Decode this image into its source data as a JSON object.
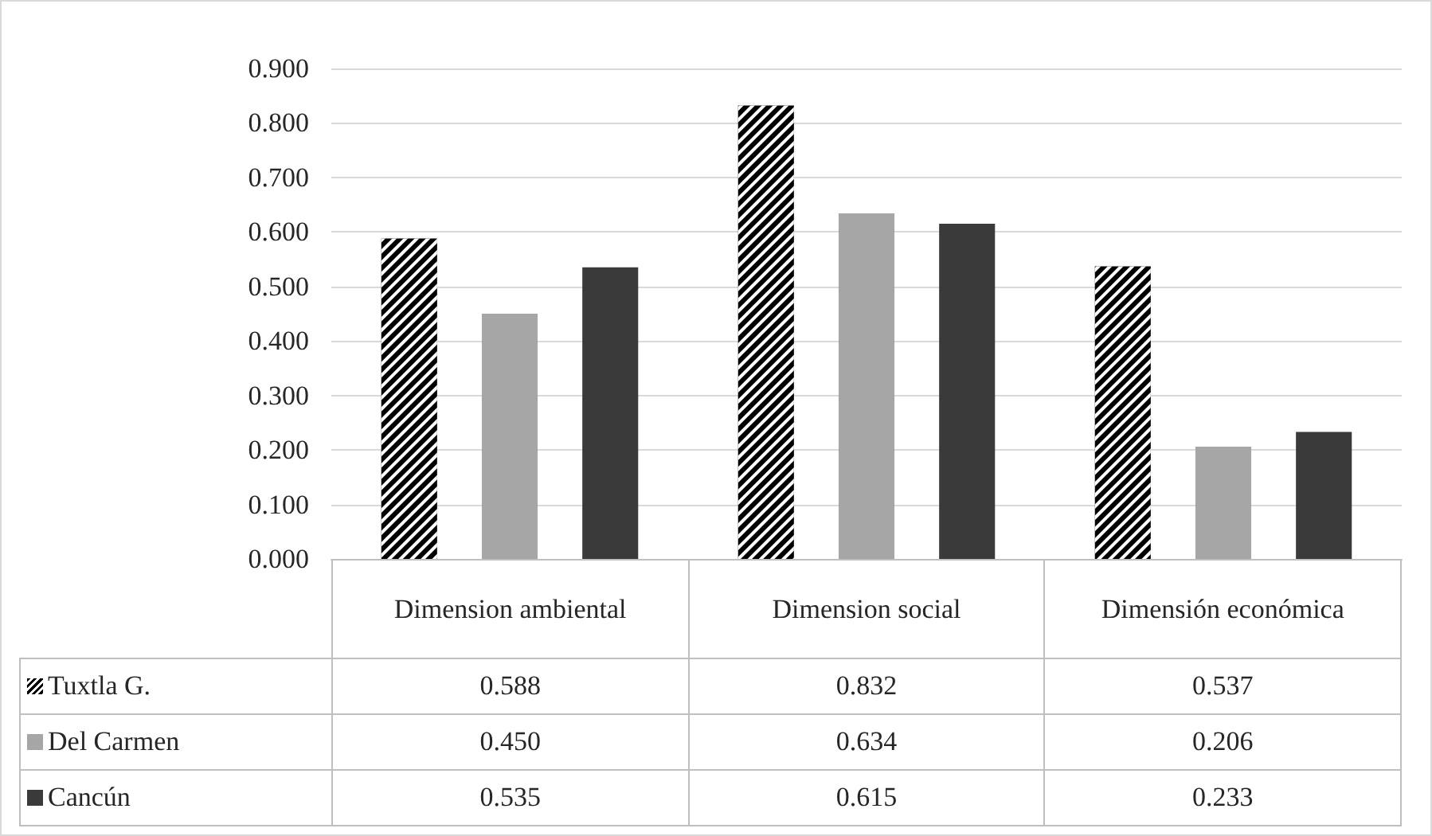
{
  "chart_data": {
    "type": "bar",
    "categories": [
      "Dimension ambiental",
      "Dimension social",
      "Dimensión económica"
    ],
    "series": [
      {
        "name": "Tuxtla G.",
        "color": "#000000",
        "values": [
          0.588,
          0.832,
          0.537
        ],
        "value_labels": [
          "0.588",
          "0.832",
          "0.537"
        ]
      },
      {
        "name": "Del Carmen",
        "color": "#a6a6a6",
        "values": [
          0.45,
          0.634,
          0.206
        ],
        "value_labels": [
          "0.450",
          "0.634",
          "0.206"
        ]
      },
      {
        "name": "Cancún",
        "color": "#3a3a3a",
        "values": [
          0.535,
          0.615,
          0.233
        ],
        "value_labels": [
          "0.535",
          "0.615",
          "0.233"
        ]
      }
    ],
    "ylim": [
      0,
      0.9
    ],
    "yticks": [
      {
        "value": 0,
        "label": "0.000"
      },
      {
        "value": 0.1,
        "label": "0.100"
      },
      {
        "value": 0.2,
        "label": "0.200"
      },
      {
        "value": 0.3,
        "label": "0.300"
      },
      {
        "value": 0.4,
        "label": "0.400"
      },
      {
        "value": 0.5,
        "label": "0.500"
      },
      {
        "value": 0.6,
        "label": "0.600"
      },
      {
        "value": 0.7,
        "label": "0.700"
      },
      {
        "value": 0.8,
        "label": "0.800"
      },
      {
        "value": 0.9,
        "label": "0.900"
      }
    ],
    "grid": "y",
    "legend": "bottom"
  }
}
